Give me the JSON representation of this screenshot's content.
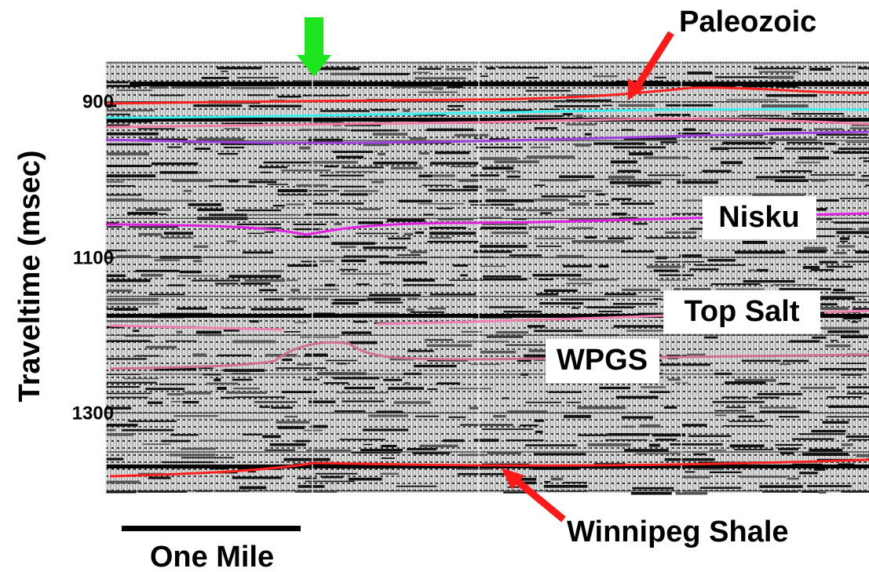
{
  "axis": {
    "title": "Traveltime (msec)",
    "ticks": [
      "900",
      "1100",
      "1300"
    ]
  },
  "labels": {
    "paleozoic": "Paleozoic",
    "nisku": "Nisku",
    "top_salt": "Top Salt",
    "wpgs": "WPGS",
    "winnipeg": "Winnipeg Shale"
  },
  "scale_bar": "One Mile"
}
